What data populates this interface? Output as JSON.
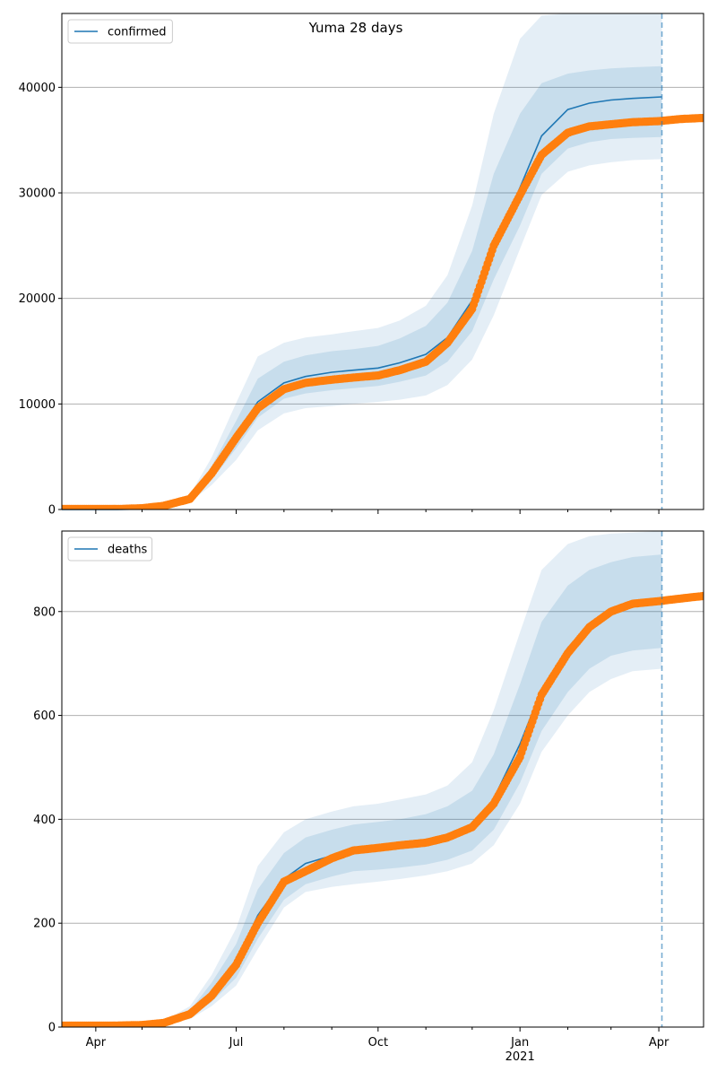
{
  "title": "Yuma 28 days",
  "colors": {
    "model": "#1f77b4",
    "observed": "#ff7f0e",
    "band": "#1f77b4",
    "grid": "#b0b0b0",
    "vline": "#1f77b4"
  },
  "chart_data": [
    {
      "type": "line",
      "legend": [
        "confirmed"
      ],
      "legend_position": "top-left",
      "grid": "y",
      "xlim": [
        "2020-03-10",
        "2021-04-30"
      ],
      "ylim": [
        0,
        47000
      ],
      "y_ticks": [
        0,
        10000,
        20000,
        30000,
        40000
      ],
      "y_tick_labels": [
        "0",
        "10000",
        "20000",
        "30000",
        "40000"
      ],
      "x_ticks": [
        "2020-04-01",
        "2020-07-01",
        "2020-10-01",
        "2021-01-01",
        "2021-04-01"
      ],
      "x_tick_labels": [
        "Apr",
        "Jul",
        "Oct",
        "Jan\n2021",
        "Apr"
      ],
      "x_tick_labels_shown": false,
      "forecast_start": "2021-04-03",
      "series": [
        {
          "name": "confirmed",
          "style": "line",
          "x": [
            "2020-03-10",
            "2020-04-15",
            "2020-05-01",
            "2020-05-15",
            "2020-06-01",
            "2020-06-15",
            "2020-07-01",
            "2020-07-15",
            "2020-08-01",
            "2020-08-15",
            "2020-09-01",
            "2020-09-15",
            "2020-10-01",
            "2020-10-15",
            "2020-11-01",
            "2020-11-15",
            "2020-12-01",
            "2020-12-15",
            "2021-01-01",
            "2021-01-15",
            "2021-02-01",
            "2021-02-15",
            "2021-03-01",
            "2021-03-15",
            "2021-04-03"
          ],
          "y": [
            0,
            0,
            50,
            300,
            1000,
            3400,
            7000,
            10200,
            12000,
            12600,
            13000,
            13200,
            13400,
            13900,
            14700,
            16300,
            19800,
            24800,
            30500,
            35400,
            37900,
            38500,
            38800,
            38950,
            39100
          ]
        },
        {
          "style": "points",
          "x": [
            "2020-03-10",
            "2020-04-15",
            "2020-05-01",
            "2020-05-15",
            "2020-06-01",
            "2020-06-15",
            "2020-07-01",
            "2020-07-15",
            "2020-08-01",
            "2020-08-15",
            "2020-09-01",
            "2020-09-15",
            "2020-10-01",
            "2020-10-15",
            "2020-11-01",
            "2020-11-15",
            "2020-12-01",
            "2020-12-15",
            "2021-01-01",
            "2021-01-15",
            "2021-02-01",
            "2021-02-15",
            "2021-03-01",
            "2021-03-15",
            "2021-04-01",
            "2021-04-15",
            "2021-04-30"
          ],
          "y": [
            50,
            50,
            120,
            350,
            1000,
            3400,
            6800,
            9600,
            11400,
            12000,
            12300,
            12500,
            12700,
            13200,
            14000,
            15800,
            19000,
            25000,
            29800,
            33600,
            35700,
            36300,
            36500,
            36700,
            36800,
            37000,
            37100
          ]
        }
      ],
      "band_upper_outer": [
        0,
        0,
        70,
        500,
        1400,
        4900,
        10100,
        14500,
        15800,
        16300,
        16600,
        16900,
        17200,
        17900,
        19300,
        22200,
        28800,
        37500,
        44600,
        46800,
        47000,
        47000,
        47000,
        47000,
        47000
      ],
      "band_lower_outer": [
        0,
        0,
        30,
        200,
        700,
        2300,
        4700,
        7500,
        9100,
        9600,
        9800,
        10000,
        10200,
        10400,
        10800,
        11800,
        14200,
        18400,
        24700,
        29800,
        32000,
        32600,
        32900,
        33100,
        33200
      ],
      "band_upper_inner": [
        0,
        0,
        60,
        400,
        1200,
        4100,
        8400,
        12400,
        14000,
        14600,
        15000,
        15200,
        15500,
        16200,
        17400,
        19600,
        24500,
        31800,
        37500,
        40400,
        41300,
        41600,
        41800,
        41900,
        42000
      ],
      "band_lower_inner": [
        0,
        0,
        40,
        250,
        850,
        2800,
        5800,
        8700,
        10500,
        11000,
        11300,
        11500,
        11700,
        12100,
        12700,
        14000,
        16900,
        21800,
        26900,
        31800,
        34200,
        34800,
        35100,
        35200,
        35300
      ]
    },
    {
      "type": "line",
      "legend": [
        "deaths"
      ],
      "legend_position": "top-left",
      "grid": "y",
      "xlim": [
        "2020-03-10",
        "2021-04-30"
      ],
      "ylim": [
        0,
        955
      ],
      "y_ticks": [
        0,
        200,
        400,
        600,
        800
      ],
      "y_tick_labels": [
        "0",
        "200",
        "400",
        "600",
        "800"
      ],
      "x_ticks": [
        "2020-04-01",
        "2020-07-01",
        "2020-10-01",
        "2021-01-01",
        "2021-04-01"
      ],
      "x_tick_labels": [
        "Apr",
        "Jul",
        "Oct",
        "Jan\n2021",
        "Apr"
      ],
      "x_tick_labels_shown": true,
      "forecast_start": "2021-04-03",
      "series": [
        {
          "name": "deaths",
          "style": "line",
          "x": [
            "2020-03-10",
            "2020-04-15",
            "2020-05-01",
            "2020-05-15",
            "2020-06-01",
            "2020-06-15",
            "2020-07-01",
            "2020-07-15",
            "2020-08-01",
            "2020-08-15",
            "2020-09-01",
            "2020-09-15",
            "2020-10-01",
            "2020-10-15",
            "2020-11-01",
            "2020-11-15",
            "2020-12-01",
            "2020-12-15",
            "2021-01-01",
            "2021-01-15",
            "2021-02-01",
            "2021-02-15",
            "2021-03-01",
            "2021-03-15",
            "2021-04-03"
          ],
          "y": [
            2,
            3,
            4,
            8,
            25,
            65,
            125,
            215,
            285,
            315,
            330,
            340,
            345,
            350,
            355,
            365,
            385,
            440,
            545,
            650,
            730,
            775,
            800,
            815,
            825
          ]
        },
        {
          "style": "points",
          "x": [
            "2020-03-10",
            "2020-04-15",
            "2020-05-01",
            "2020-05-15",
            "2020-06-01",
            "2020-06-15",
            "2020-07-01",
            "2020-07-15",
            "2020-08-01",
            "2020-08-15",
            "2020-09-01",
            "2020-09-15",
            "2020-10-01",
            "2020-10-15",
            "2020-11-01",
            "2020-11-15",
            "2020-12-01",
            "2020-12-15",
            "2021-01-01",
            "2021-01-15",
            "2021-02-01",
            "2021-02-15",
            "2021-03-01",
            "2021-03-15",
            "2021-04-01",
            "2021-04-15",
            "2021-04-30"
          ],
          "y": [
            3,
            3,
            4,
            8,
            25,
            60,
            120,
            200,
            280,
            300,
            325,
            340,
            345,
            350,
            355,
            365,
            385,
            430,
            520,
            640,
            720,
            770,
            800,
            815,
            820,
            825,
            830
          ]
        }
      ],
      "band_upper_outer": [
        2,
        3,
        5,
        12,
        40,
        100,
        190,
        310,
        375,
        400,
        415,
        425,
        430,
        438,
        448,
        465,
        510,
        610,
        760,
        880,
        930,
        945,
        950,
        952,
        955
      ],
      "band_lower_outer": [
        1,
        2,
        3,
        5,
        15,
        40,
        80,
        150,
        230,
        260,
        270,
        275,
        280,
        285,
        292,
        300,
        315,
        350,
        430,
        530,
        600,
        645,
        670,
        685,
        690
      ],
      "band_upper_inner": [
        2,
        3,
        4,
        10,
        32,
        85,
        160,
        265,
        335,
        365,
        380,
        390,
        395,
        400,
        410,
        425,
        455,
        525,
        660,
        780,
        850,
        880,
        895,
        905,
        910
      ],
      "band_lower_inner": [
        1,
        2,
        3,
        6,
        19,
        48,
        95,
        170,
        245,
        275,
        290,
        300,
        303,
        307,
        313,
        322,
        340,
        380,
        470,
        570,
        645,
        690,
        715,
        725,
        730
      ]
    }
  ]
}
